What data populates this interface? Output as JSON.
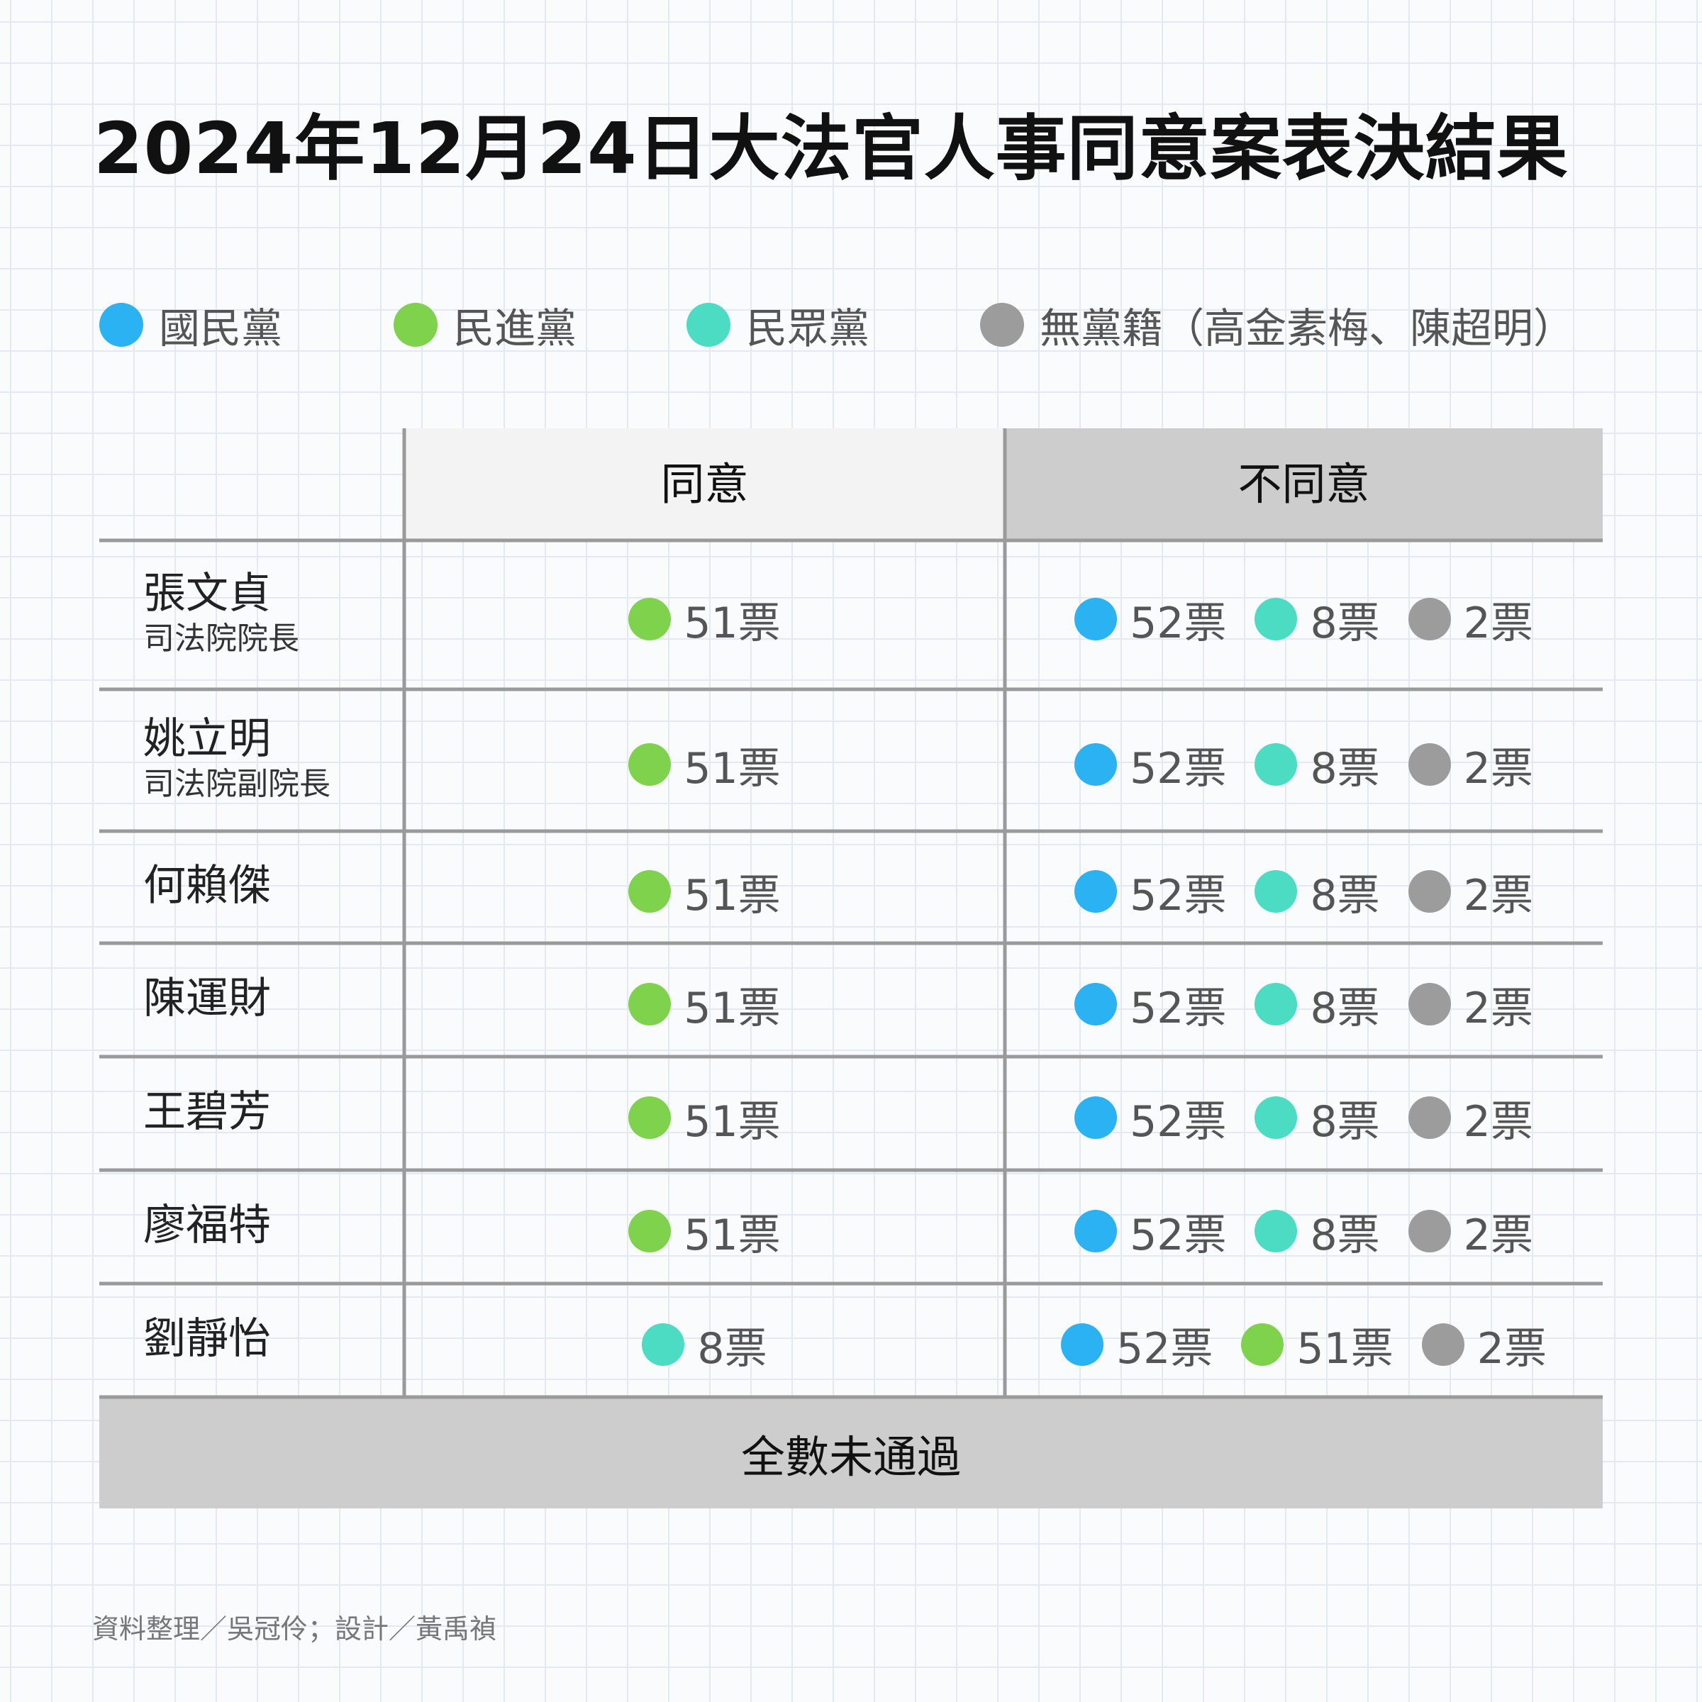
{
  "title": "2024年12月24日大法官人事同意案表決結果",
  "legend": [
    {
      "key": "kmt",
      "label": "國民黨",
      "color": "#2bb2f2"
    },
    {
      "key": "dpp",
      "label": "民進黨",
      "color": "#7ed24c"
    },
    {
      "key": "tpp",
      "label": "民眾黨",
      "color": "#4cdcc4"
    },
    {
      "key": "ind",
      "label": "無黨籍（高金素梅、陳超明）",
      "color": "#9c9c9c"
    }
  ],
  "chart_data": {
    "type": "table",
    "columns": [
      "同意",
      "不同意"
    ],
    "rows": [
      {
        "name": "張文貞",
        "role": "司法院院長",
        "agree": [
          {
            "party": "dpp",
            "value": "51票"
          }
        ],
        "disagree": [
          {
            "party": "kmt",
            "value": "52票"
          },
          {
            "party": "tpp",
            "value": "8票"
          },
          {
            "party": "ind",
            "value": "2票"
          }
        ]
      },
      {
        "name": "姚立明",
        "role": "司法院副院長",
        "agree": [
          {
            "party": "dpp",
            "value": "51票"
          }
        ],
        "disagree": [
          {
            "party": "kmt",
            "value": "52票"
          },
          {
            "party": "tpp",
            "value": "8票"
          },
          {
            "party": "ind",
            "value": "2票"
          }
        ]
      },
      {
        "name": "何賴傑",
        "role": "",
        "agree": [
          {
            "party": "dpp",
            "value": "51票"
          }
        ],
        "disagree": [
          {
            "party": "kmt",
            "value": "52票"
          },
          {
            "party": "tpp",
            "value": "8票"
          },
          {
            "party": "ind",
            "value": "2票"
          }
        ]
      },
      {
        "name": "陳運財",
        "role": "",
        "agree": [
          {
            "party": "dpp",
            "value": "51票"
          }
        ],
        "disagree": [
          {
            "party": "kmt",
            "value": "52票"
          },
          {
            "party": "tpp",
            "value": "8票"
          },
          {
            "party": "ind",
            "value": "2票"
          }
        ]
      },
      {
        "name": "王碧芳",
        "role": "",
        "agree": [
          {
            "party": "dpp",
            "value": "51票"
          }
        ],
        "disagree": [
          {
            "party": "kmt",
            "value": "52票"
          },
          {
            "party": "tpp",
            "value": "8票"
          },
          {
            "party": "ind",
            "value": "2票"
          }
        ]
      },
      {
        "name": "廖福特",
        "role": "",
        "agree": [
          {
            "party": "dpp",
            "value": "51票"
          }
        ],
        "disagree": [
          {
            "party": "kmt",
            "value": "52票"
          },
          {
            "party": "tpp",
            "value": "8票"
          },
          {
            "party": "ind",
            "value": "2票"
          }
        ]
      },
      {
        "name": "劉靜怡",
        "role": "",
        "agree": [
          {
            "party": "tpp",
            "value": "8票"
          }
        ],
        "disagree": [
          {
            "party": "kmt",
            "value": "52票"
          },
          {
            "party": "dpp",
            "value": "51票"
          },
          {
            "party": "ind",
            "value": "2票"
          }
        ]
      }
    ],
    "summary": "全數未通過"
  },
  "credit": "資料整理／吳冠伶；設計／黃禹禎"
}
